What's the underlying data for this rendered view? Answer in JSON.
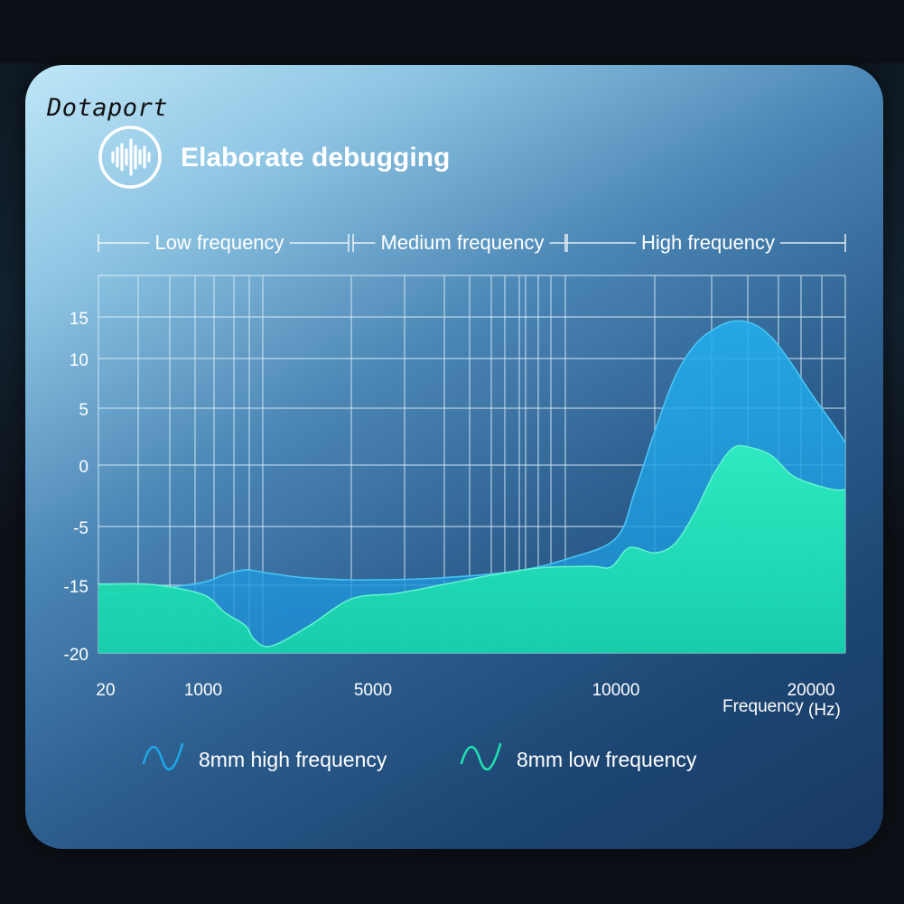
{
  "brand": "Dotaport",
  "title": "Elaborate debugging",
  "colors": {
    "high_series": "#1ea6e6",
    "low_series": "#1fe0b0",
    "grid": "#dbeffa",
    "text": "#ffffff"
  },
  "bands": [
    {
      "label": "Low frequency"
    },
    {
      "label": "Medium frequency"
    },
    {
      "label": "High frequency"
    }
  ],
  "legend": [
    {
      "label": "8mm high frequency",
      "icon": "wave-icon"
    },
    {
      "label": "8mm low frequency",
      "icon": "wave-icon"
    }
  ],
  "chart_data": {
    "type": "area",
    "xlabel": "Frequency",
    "xunit": "(Hz)",
    "x_ticks": [
      "20",
      "1000",
      "5000",
      "10000",
      "20000"
    ],
    "y_ticks": [
      "15",
      "10",
      "5",
      "0",
      "-5",
      "-15",
      "-20"
    ],
    "ylim": [
      -20,
      15
    ],
    "grid": true,
    "series": [
      {
        "name": "8mm high frequency",
        "points": [
          [
            20,
            -15.6
          ],
          [
            500,
            -15.3
          ],
          [
            1000,
            -14.5
          ],
          [
            1500,
            -13.2
          ],
          [
            2000,
            -12.4
          ],
          [
            2500,
            -12.9
          ],
          [
            3500,
            -13.8
          ],
          [
            5000,
            -14.1
          ],
          [
            6500,
            -13.7
          ],
          [
            8000,
            -12.5
          ],
          [
            9000,
            -10.5
          ],
          [
            10000,
            -7.0
          ],
          [
            11000,
            -2.0
          ],
          [
            12000,
            3.0
          ],
          [
            13000,
            8.0
          ],
          [
            14000,
            11.5
          ],
          [
            15000,
            13.5
          ],
          [
            16000,
            14.5
          ],
          [
            17000,
            14.2
          ],
          [
            18000,
            12.5
          ],
          [
            19000,
            9.5
          ],
          [
            20000,
            6.5
          ],
          [
            21000,
            3.5
          ],
          [
            21500,
            2.0
          ]
        ]
      },
      {
        "name": "8mm low frequency",
        "points": [
          [
            20,
            -14.8
          ],
          [
            500,
            -14.9
          ],
          [
            1000,
            -15.7
          ],
          [
            1500,
            -17.0
          ],
          [
            2000,
            -18.0
          ],
          [
            2200,
            -19.0
          ],
          [
            2600,
            -19.5
          ],
          [
            3500,
            -18.0
          ],
          [
            4500,
            -16.0
          ],
          [
            5500,
            -15.6
          ],
          [
            6500,
            -14.8
          ],
          [
            7500,
            -13.2
          ],
          [
            8500,
            -12.0
          ],
          [
            9500,
            -11.8
          ],
          [
            9900,
            -11.9
          ],
          [
            10500,
            -9.0
          ],
          [
            11000,
            -8.6
          ],
          [
            12000,
            -9.5
          ],
          [
            13000,
            -8.0
          ],
          [
            14000,
            -4.0
          ],
          [
            15000,
            -0.8
          ],
          [
            16000,
            1.5
          ],
          [
            17000,
            1.5
          ],
          [
            18000,
            0.8
          ],
          [
            19000,
            -0.8
          ],
          [
            20000,
            -1.5
          ],
          [
            21000,
            -2.0
          ],
          [
            21500,
            -2.0
          ]
        ]
      }
    ]
  }
}
